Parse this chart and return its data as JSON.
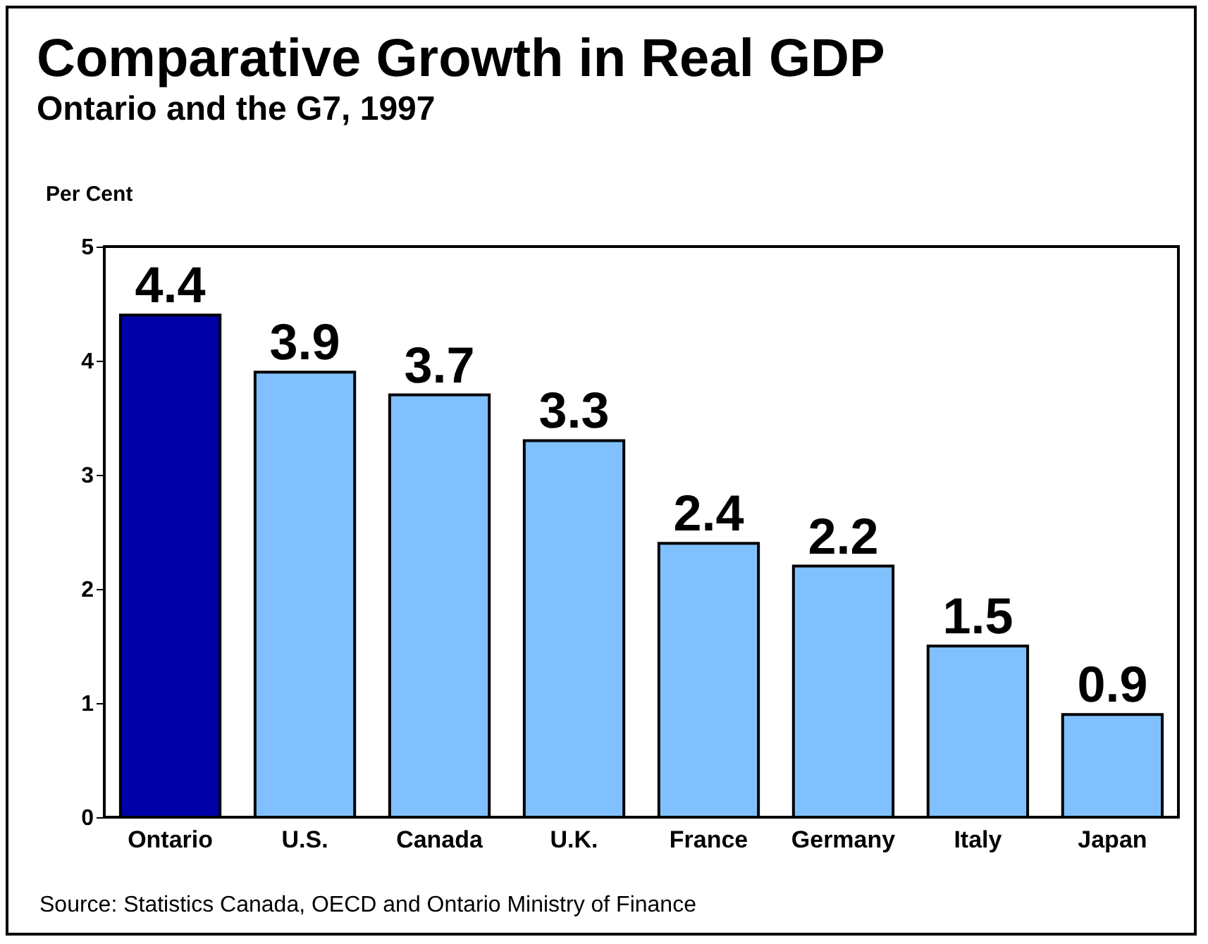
{
  "chart_data": {
    "type": "bar",
    "title": "Comparative Growth in Real GDP",
    "subtitle": "Ontario and the G7, 1997",
    "ylabel": "Per Cent",
    "categories": [
      "Ontario",
      "U.S.",
      "Canada",
      "U.K.",
      "France",
      "Germany",
      "Italy",
      "Japan"
    ],
    "values": [
      4.4,
      3.9,
      3.7,
      3.3,
      2.4,
      2.2,
      1.5,
      0.9
    ],
    "colors": [
      "#0000a8",
      "#80c0ff",
      "#80c0ff",
      "#80c0ff",
      "#80c0ff",
      "#80c0ff",
      "#80c0ff",
      "#80c0ff"
    ],
    "ylim": [
      0,
      5
    ],
    "yticks": [
      0,
      1,
      2,
      3,
      4,
      5
    ],
    "data_labels": true,
    "annotations": [
      "Source: Statistics Canada, OECD and Ontario Ministry of Finance"
    ]
  }
}
